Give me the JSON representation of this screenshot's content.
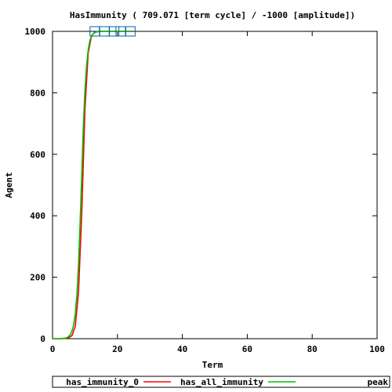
{
  "chart_data": {
    "type": "line",
    "title": "HasImmunity ( 709.071 [term cycle] / -1000 [amplitude])",
    "xlabel": "Term",
    "ylabel": "Agent",
    "xlim": [
      0,
      100
    ],
    "ylim": [
      0,
      1000
    ],
    "xticks": [
      0,
      20,
      40,
      60,
      80,
      100
    ],
    "yticks": [
      0,
      200,
      400,
      600,
      800,
      1000
    ],
    "x_tick_labels": [
      "0",
      "20",
      "40",
      "60",
      "80",
      "100"
    ],
    "y_tick_labels": [
      "0",
      "200",
      "400",
      "600",
      "800",
      "1000"
    ],
    "grid": false,
    "legend_position": "bottom",
    "series": [
      {
        "name": "has_immunity_0",
        "color": "#ff0000",
        "x": [
          0,
          1,
          2,
          3,
          4,
          5,
          6,
          7,
          8,
          9,
          10,
          11,
          12,
          13,
          14,
          15,
          16,
          17,
          18,
          19,
          20,
          21,
          22,
          23,
          24
        ],
        "y": [
          0,
          0,
          0,
          0,
          1,
          3,
          10,
          40,
          150,
          410,
          750,
          930,
          985,
          997,
          999,
          1000,
          1000,
          1000,
          1000,
          1000,
          1000,
          1000,
          1000,
          1000,
          1000
        ]
      },
      {
        "name": "has_all_immunity",
        "color": "#00c000",
        "x": [
          0,
          0.5,
          1,
          1.5,
          2,
          2.5,
          3,
          3.5,
          4,
          4.5,
          5,
          5.5,
          6,
          6.5,
          7,
          7.5,
          8,
          8.5,
          9,
          9.5,
          10,
          10.5,
          11,
          11.5,
          12,
          12.5,
          13,
          13.5,
          14,
          15,
          16,
          17,
          18,
          19,
          20,
          21,
          22,
          23,
          24
        ],
        "y": [
          0,
          0,
          0,
          0,
          0,
          0,
          1,
          1,
          2,
          3,
          8,
          14,
          25,
          45,
          80,
          140,
          240,
          380,
          540,
          690,
          810,
          890,
          940,
          970,
          985,
          992,
          996,
          998,
          1000,
          1000,
          1000,
          1000,
          1000,
          1000,
          1000,
          1000,
          1000,
          1000,
          1000
        ]
      },
      {
        "name": "peak",
        "color": "#0060ad",
        "marker": "square",
        "x": [
          13,
          16,
          19,
          21,
          24
        ],
        "y": [
          1000,
          1000,
          1000,
          1000,
          1000
        ]
      }
    ]
  }
}
